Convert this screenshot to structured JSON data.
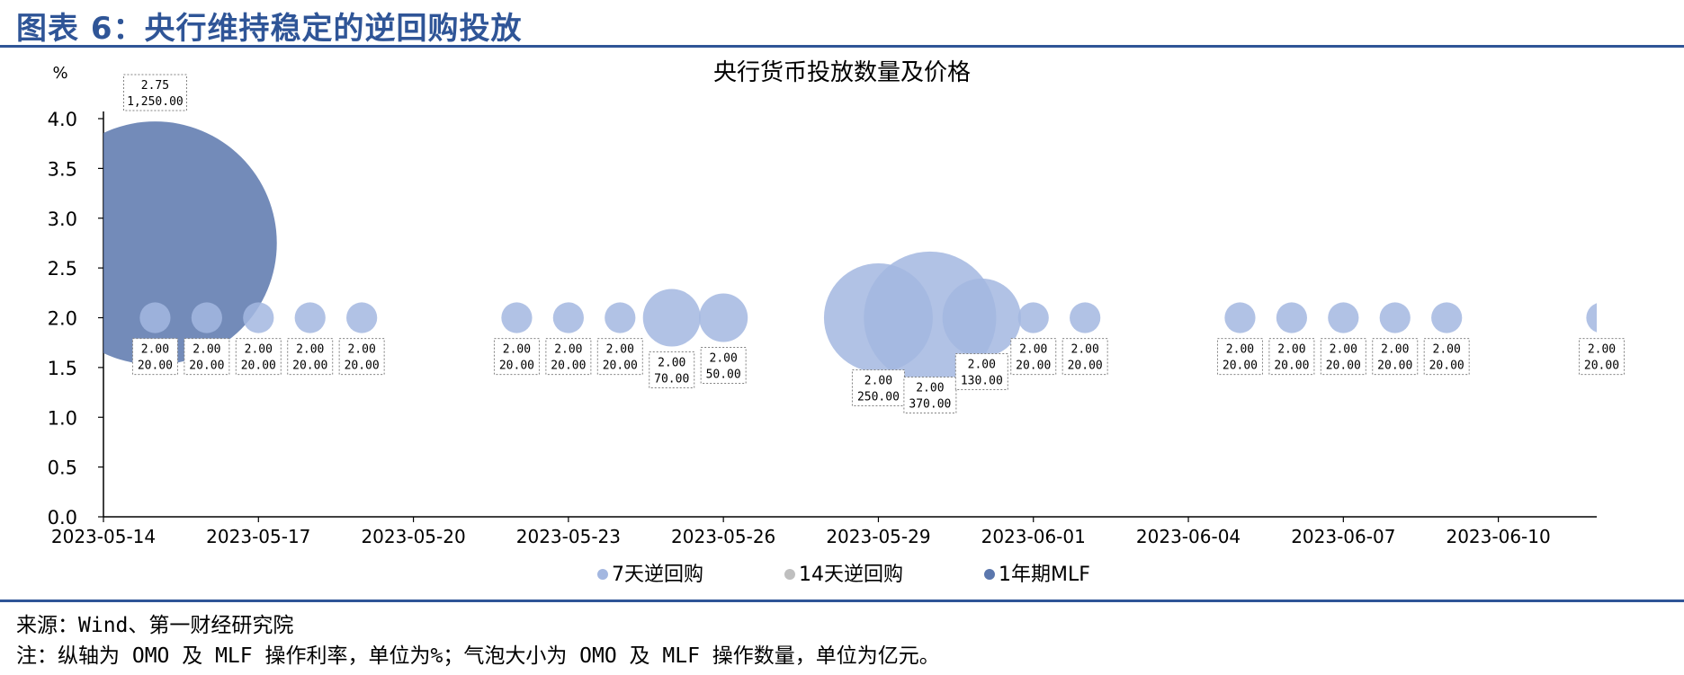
{
  "header": {
    "title": "图表 6：央行维持稳定的逆回购投放"
  },
  "footer": {
    "source": "来源：Wind、第一财经研究院",
    "note": "注：纵轴为 OMO 及 MLF 操作利率，单位为%；气泡大小为 OMO 及 MLF 操作数量，单位为亿元。"
  },
  "colors": {
    "omo7": "#a3b7e0",
    "omo14": "#bfbfbf",
    "mlf": "#5b77ad",
    "accent": "#2f5597"
  },
  "chart_data": {
    "type": "bubble",
    "title": "央行货币投放数量及价格",
    "ylabel": "%",
    "ylim": [
      0,
      4.0
    ],
    "yticks": [
      "0.0",
      "0.5",
      "1.0",
      "1.5",
      "2.0",
      "2.5",
      "3.0",
      "3.5",
      "4.0"
    ],
    "xlim": [
      "2023-05-14",
      "2023-06-11"
    ],
    "xticks": [
      "2023-05-14",
      "2023-05-17",
      "2023-05-20",
      "2023-05-23",
      "2023-05-26",
      "2023-05-29",
      "2023-06-01",
      "2023-06-04",
      "2023-06-07",
      "2023-06-10"
    ],
    "legend": [
      "7天逆回购",
      "14天逆回购",
      "1年期MLF"
    ],
    "series": [
      {
        "name": "7天逆回购",
        "points": [
          {
            "date": "2023-05-15",
            "rate": "2.00",
            "amount": "20.00"
          },
          {
            "date": "2023-05-16",
            "rate": "2.00",
            "amount": "20.00"
          },
          {
            "date": "2023-05-17",
            "rate": "2.00",
            "amount": "20.00"
          },
          {
            "date": "2023-05-18",
            "rate": "2.00",
            "amount": "20.00"
          },
          {
            "date": "2023-05-19",
            "rate": "2.00",
            "amount": "20.00"
          },
          {
            "date": "2023-05-22",
            "rate": "2.00",
            "amount": "20.00"
          },
          {
            "date": "2023-05-23",
            "rate": "2.00",
            "amount": "20.00"
          },
          {
            "date": "2023-05-24",
            "rate": "2.00",
            "amount": "20.00"
          },
          {
            "date": "2023-05-25",
            "rate": "2.00",
            "amount": "70.00"
          },
          {
            "date": "2023-05-26",
            "rate": "2.00",
            "amount": "50.00"
          },
          {
            "date": "2023-05-29",
            "rate": "2.00",
            "amount": "250.00"
          },
          {
            "date": "2023-05-30",
            "rate": "2.00",
            "amount": "370.00"
          },
          {
            "date": "2023-05-31",
            "rate": "2.00",
            "amount": "130.00"
          },
          {
            "date": "2023-06-01",
            "rate": "2.00",
            "amount": "20.00"
          },
          {
            "date": "2023-06-02",
            "rate": "2.00",
            "amount": "20.00"
          },
          {
            "date": "2023-06-05",
            "rate": "2.00",
            "amount": "20.00"
          },
          {
            "date": "2023-06-06",
            "rate": "2.00",
            "amount": "20.00"
          },
          {
            "date": "2023-06-07",
            "rate": "2.00",
            "amount": "20.00"
          },
          {
            "date": "2023-06-08",
            "rate": "2.00",
            "amount": "20.00"
          },
          {
            "date": "2023-06-09",
            "rate": "2.00",
            "amount": "20.00"
          },
          {
            "date": "2023-06-12",
            "rate": "2.00",
            "amount": "20.00"
          }
        ]
      },
      {
        "name": "14天逆回购",
        "points": []
      },
      {
        "name": "1年期MLF",
        "points": [
          {
            "date": "2023-05-15",
            "rate": "2.75",
            "amount": "1,250.00"
          }
        ]
      }
    ]
  }
}
